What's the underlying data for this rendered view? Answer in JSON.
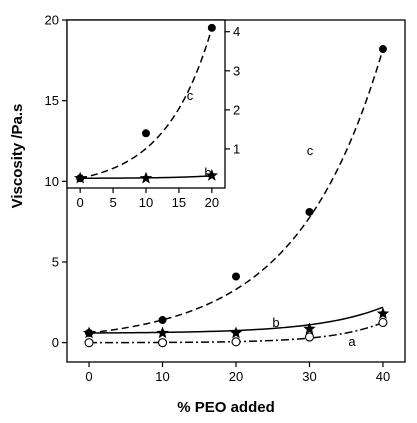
{
  "colors": {
    "ink": "#000000",
    "background": "#ffffff"
  },
  "chart_data": [
    {
      "id": "main",
      "type": "line",
      "xlabel": "% PEO added",
      "ylabel": "Viscosity /Pa.s",
      "xlim": [
        -3,
        43
      ],
      "ylim": [
        -1.2,
        20
      ],
      "x_ticks": [
        0,
        10,
        20,
        30,
        40
      ],
      "y_ticks": [
        0,
        5,
        10,
        15,
        20
      ],
      "grid": false,
      "series": [
        {
          "name": "c",
          "marker": "filled-circle",
          "line_style": "dashed",
          "x": [
            0,
            10,
            20,
            30,
            40
          ],
          "y": [
            0.6,
            1.4,
            4.1,
            8.1,
            18.2
          ],
          "fit": {
            "kind": "exp",
            "a": 0.6,
            "k": 0.0853,
            "c": 0
          }
        },
        {
          "name": "b",
          "marker": "star",
          "line_style": "solid",
          "x": [
            0,
            10,
            20,
            30,
            40
          ],
          "y": [
            0.6,
            0.6,
            0.6,
            0.85,
            1.8
          ],
          "fit": {
            "kind": "exp",
            "a": 0.018,
            "k": 0.1125,
            "c": 0.58
          }
        },
        {
          "name": "a",
          "marker": "open-circle",
          "line_style": "dash-dot",
          "x": [
            0,
            10,
            20,
            30,
            40
          ],
          "y": [
            0.0,
            0.0,
            0.05,
            0.35,
            1.25
          ],
          "fit": {
            "kind": "exp",
            "a": 0.0035,
            "k": 0.147,
            "c": -0.0035
          }
        }
      ]
    },
    {
      "id": "inset",
      "type": "line",
      "xlim": [
        -2,
        22
      ],
      "ylim": [
        0,
        4.3
      ],
      "x_ticks": [
        0,
        5,
        10,
        15,
        20
      ],
      "y_ticks": [
        1,
        2,
        3,
        4
      ],
      "y_axis_side": "right",
      "grid": false,
      "series": [
        {
          "name": "c",
          "marker": "filled-circle",
          "line_style": "dashed",
          "x": [
            0,
            10,
            20
          ],
          "y": [
            0.25,
            1.4,
            4.1
          ],
          "fit": {
            "kind": "exp",
            "a": 0.25,
            "k": 0.1397,
            "c": 0
          }
        },
        {
          "name": "b",
          "marker": "star",
          "line_style": "solid",
          "x": [
            0,
            10,
            20
          ],
          "y": [
            0.25,
            0.25,
            0.32
          ],
          "fit": {
            "kind": "exp",
            "a": 0.002,
            "k": 0.175,
            "c": 0.248
          }
        }
      ]
    }
  ]
}
